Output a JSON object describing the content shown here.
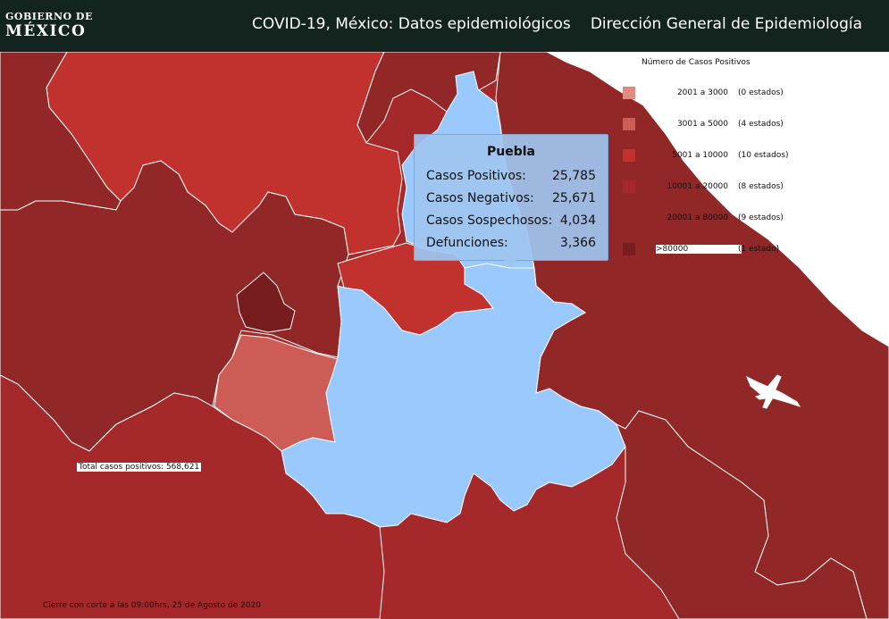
{
  "header": {
    "logo_line1": "GOBIERNO DE",
    "logo_line2": "MÉXICO",
    "title": "COVID-19, México: Datos epidemiológicos",
    "org": "Dirección General de Epidemiología",
    "background": "#13231e"
  },
  "legend": {
    "title": "Número de Casos Positivos",
    "items": [
      {
        "range": "2001 a     3000",
        "count": "(0 estados)",
        "color": "#e08a80"
      },
      {
        "range": "3001 a     5000",
        "count": "(4 estados)",
        "color": "#cd5c57"
      },
      {
        "range": "5001 a   10000",
        "count": "(10 estados)",
        "color": "#c1322f"
      },
      {
        "range": "10001 a   20000",
        "count": "(8 estados)",
        "color": "#a5292a"
      },
      {
        "range": "20001 a   80000",
        "count": "(9 estados)",
        "color": "#922727"
      },
      {
        "range": ">80000",
        "count": "(1 estado)",
        "color": "#771d1f"
      }
    ]
  },
  "total_label": "Total casos positivos: 568,621",
  "footer_note": "Cierre con corte a las 09:00hrs, 25 de Agosto de 2020",
  "tooltip": {
    "state": "Puebla",
    "rows": [
      {
        "label": "Casos Positivos:",
        "value": "25,785"
      },
      {
        "label": "Casos Negativos:",
        "value": "25,671"
      },
      {
        "label": "Casos Sospechosos:",
        "value": "4,034"
      },
      {
        "label": "Defunciones:",
        "value": "3,366"
      }
    ]
  },
  "colors": {
    "highlight": "#99c9fd",
    "sea": "#ffffff",
    "border": "#ffffff"
  }
}
